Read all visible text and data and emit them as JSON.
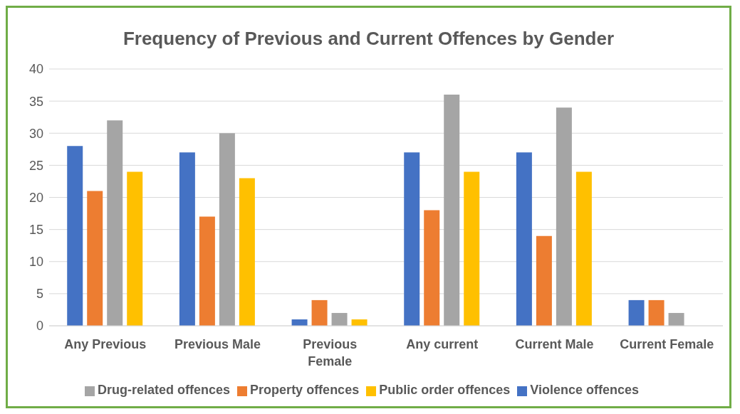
{
  "chart_data": {
    "type": "bar",
    "title": "Frequency of Previous and Current Offences by Gender",
    "categories": [
      "Any Previous",
      "Previous Male",
      "Previous Female",
      "Any current",
      "Current Male",
      "Current Female"
    ],
    "series": [
      {
        "name": "Violence offences",
        "color": "#4472c4",
        "values": [
          28,
          27,
          1,
          27,
          27,
          4
        ]
      },
      {
        "name": "Property offences",
        "color": "#ed7d31",
        "values": [
          21,
          17,
          4,
          18,
          14,
          4
        ]
      },
      {
        "name": "Drug-related offences",
        "color": "#a5a5a5",
        "values": [
          32,
          30,
          2,
          36,
          34,
          2
        ]
      },
      {
        "name": "Public order offences",
        "color": "#ffc000",
        "values": [
          24,
          23,
          1,
          24,
          24,
          0
        ]
      }
    ],
    "ylim": [
      0,
      40
    ],
    "yticks": [
      0,
      5,
      10,
      15,
      20,
      25,
      30,
      35,
      40
    ],
    "grid": "y",
    "legend": "bottom"
  }
}
